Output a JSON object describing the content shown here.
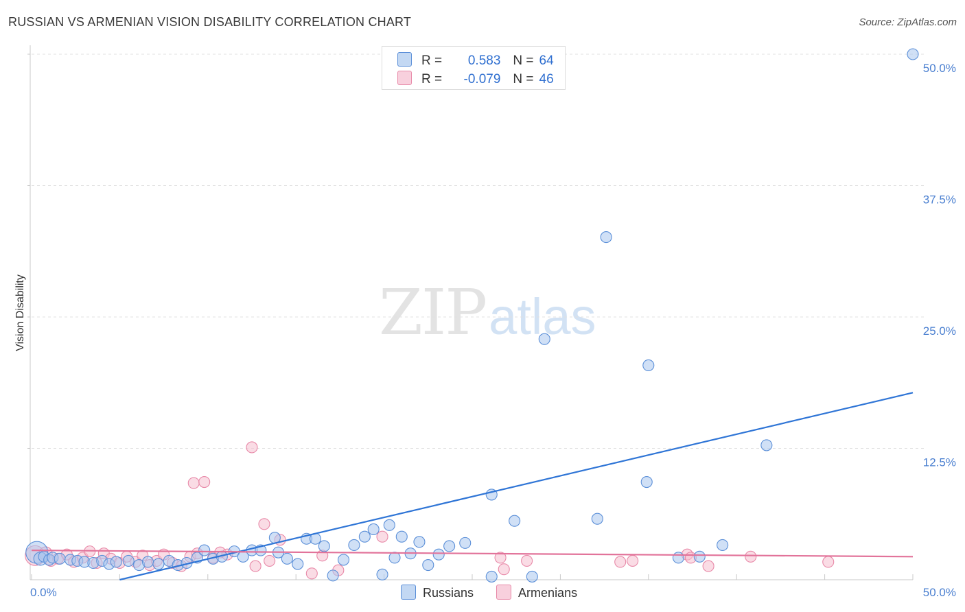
{
  "title": "RUSSIAN VS ARMENIAN VISION DISABILITY CORRELATION CHART",
  "source": "Source: ZipAtlas.com",
  "watermark": {
    "zip": "ZIP",
    "atlas": "atlas"
  },
  "colors": {
    "blue": "#5b8fd8",
    "blue_fill": "#a9c6ee",
    "blue_line": "#2f75d6",
    "pink": "#e889a8",
    "pink_fill": "#f5bfd0",
    "pink_line": "#e2739a",
    "grid": "#e0e0e0",
    "tick_text": "#4a7fd0"
  },
  "legend": {
    "rows": [
      {
        "r_label": "R =",
        "r_value": "0.583",
        "n_label": "N =",
        "n_value": "64"
      },
      {
        "r_label": "R =",
        "r_value": "-0.079",
        "n_label": "N =",
        "n_value": "46"
      }
    ]
  },
  "bottom_legend": [
    "Russians",
    "Armenians"
  ],
  "chart_data": {
    "type": "scatter",
    "title": "RUSSIAN VS ARMENIAN VISION DISABILITY CORRELATION CHART",
    "xlabel": "",
    "ylabel": "Vision Disability",
    "xlim": [
      0,
      50
    ],
    "ylim": [
      0,
      50
    ],
    "x_ticks": [
      "0.0%",
      "50.0%"
    ],
    "y_ticks": [
      "12.5%",
      "25.0%",
      "37.5%",
      "50.0%"
    ],
    "y_tick_values": [
      12.5,
      25.0,
      37.5,
      50.0
    ],
    "grid": "horizontal dashed",
    "series": [
      {
        "name": "Russians",
        "r": 0.583,
        "n": 64,
        "trendline": [
          [
            5.0,
            0.0
          ],
          [
            50.0,
            17.8
          ]
        ],
        "points": [
          [
            0.3,
            2.6,
            2.0
          ],
          [
            0.5,
            2.0,
            1.2
          ],
          [
            0.7,
            2.2,
            1.0
          ],
          [
            1.0,
            1.9,
            1.0
          ],
          [
            1.2,
            2.1,
            1.0
          ],
          [
            1.6,
            2.0,
            1.0
          ],
          [
            2.2,
            1.9,
            1.0
          ],
          [
            2.6,
            1.8,
            1.0
          ],
          [
            3.0,
            1.7,
            1.0
          ],
          [
            3.5,
            1.6,
            1.0
          ],
          [
            4.0,
            1.8,
            1.0
          ],
          [
            4.4,
            1.5,
            1.0
          ],
          [
            4.8,
            1.7,
            1.0
          ],
          [
            5.5,
            1.8,
            1.0
          ],
          [
            6.1,
            1.4,
            1.0
          ],
          [
            6.6,
            1.7,
            1.0
          ],
          [
            7.2,
            1.5,
            1.0
          ],
          [
            7.8,
            1.8,
            1.0
          ],
          [
            8.3,
            1.4,
            1.0
          ],
          [
            8.8,
            1.6,
            1.0
          ],
          [
            9.4,
            2.1,
            1.0
          ],
          [
            9.8,
            2.8,
            1.0
          ],
          [
            10.3,
            2.0,
            1.0
          ],
          [
            10.8,
            2.2,
            1.0
          ],
          [
            11.5,
            2.7,
            1.0
          ],
          [
            12.0,
            2.2,
            1.0
          ],
          [
            12.5,
            2.8,
            1.0
          ],
          [
            13.0,
            2.8,
            1.0
          ],
          [
            13.8,
            4.0,
            1.0
          ],
          [
            14.0,
            2.6,
            1.0
          ],
          [
            14.5,
            2.0,
            1.0
          ],
          [
            15.1,
            1.5,
            1.0
          ],
          [
            15.6,
            3.9,
            1.0
          ],
          [
            16.1,
            3.9,
            1.0
          ],
          [
            16.6,
            3.2,
            1.0
          ],
          [
            17.1,
            0.4,
            1.0
          ],
          [
            17.7,
            1.9,
            1.0
          ],
          [
            18.3,
            3.3,
            1.0
          ],
          [
            18.9,
            4.1,
            1.0
          ],
          [
            19.4,
            4.8,
            1.0
          ],
          [
            19.9,
            0.5,
            1.0
          ],
          [
            20.3,
            5.2,
            1.0
          ],
          [
            20.6,
            2.1,
            1.0
          ],
          [
            21.0,
            4.1,
            1.0
          ],
          [
            21.5,
            2.5,
            1.0
          ],
          [
            22.0,
            3.6,
            1.0
          ],
          [
            22.5,
            1.4,
            1.0
          ],
          [
            23.1,
            2.4,
            1.0
          ],
          [
            23.7,
            3.2,
            1.0
          ],
          [
            24.6,
            3.5,
            1.0
          ],
          [
            26.1,
            8.1,
            1.0
          ],
          [
            26.1,
            0.3,
            1.0
          ],
          [
            27.4,
            5.6,
            1.0
          ],
          [
            28.4,
            0.3,
            1.0
          ],
          [
            29.1,
            22.9,
            1.0
          ],
          [
            32.1,
            5.8,
            1.0
          ],
          [
            32.6,
            32.6,
            1.0
          ],
          [
            34.9,
            9.3,
            1.0
          ],
          [
            35.0,
            20.4,
            1.0
          ],
          [
            36.7,
            2.1,
            1.0
          ],
          [
            37.9,
            2.2,
            1.0
          ],
          [
            39.2,
            3.3,
            1.0
          ],
          [
            41.7,
            12.8,
            1.0
          ],
          [
            50.0,
            50.0,
            1.0
          ]
        ]
      },
      {
        "name": "Armenians",
        "r": -0.079,
        "n": 46,
        "trendline": [
          [
            0.0,
            2.8
          ],
          [
            50.0,
            2.2
          ]
        ],
        "points": [
          [
            0.2,
            2.3,
            1.8
          ],
          [
            0.8,
            2.5,
            1.2
          ],
          [
            1.1,
            1.8,
            1.0
          ],
          [
            1.5,
            2.0,
            1.0
          ],
          [
            2.0,
            2.4,
            1.0
          ],
          [
            2.4,
            1.7,
            1.0
          ],
          [
            2.9,
            2.1,
            1.0
          ],
          [
            3.3,
            2.7,
            1.0
          ],
          [
            3.7,
            1.6,
            1.0
          ],
          [
            4.1,
            2.5,
            1.0
          ],
          [
            4.5,
            2.0,
            1.0
          ],
          [
            5.0,
            1.6,
            1.0
          ],
          [
            5.4,
            2.2,
            1.0
          ],
          [
            5.9,
            1.7,
            1.0
          ],
          [
            6.3,
            2.3,
            1.0
          ],
          [
            6.7,
            1.4,
            1.0
          ],
          [
            7.1,
            1.8,
            1.0
          ],
          [
            7.5,
            2.4,
            1.0
          ],
          [
            8.0,
            1.6,
            1.0
          ],
          [
            8.5,
            1.3,
            1.0
          ],
          [
            9.0,
            2.2,
            1.0
          ],
          [
            9.2,
            9.2,
            1.0
          ],
          [
            9.4,
            2.5,
            1.0
          ],
          [
            9.8,
            9.3,
            1.0
          ],
          [
            10.3,
            2.1,
            1.0
          ],
          [
            10.7,
            2.6,
            1.0
          ],
          [
            11.1,
            2.4,
            1.0
          ],
          [
            12.5,
            12.6,
            1.0
          ],
          [
            12.7,
            1.3,
            1.0
          ],
          [
            13.2,
            5.3,
            1.0
          ],
          [
            13.5,
            1.8,
            1.0
          ],
          [
            14.1,
            3.8,
            1.0
          ],
          [
            15.9,
            0.6,
            1.0
          ],
          [
            16.5,
            2.3,
            1.0
          ],
          [
            17.4,
            0.9,
            1.0
          ],
          [
            19.9,
            4.1,
            1.0
          ],
          [
            26.6,
            2.1,
            1.0
          ],
          [
            26.8,
            1.0,
            1.0
          ],
          [
            28.1,
            1.8,
            1.0
          ],
          [
            33.4,
            1.7,
            1.0
          ],
          [
            34.1,
            1.8,
            1.0
          ],
          [
            37.2,
            2.4,
            1.0
          ],
          [
            37.4,
            2.1,
            1.0
          ],
          [
            38.4,
            1.3,
            1.0
          ],
          [
            40.8,
            2.2,
            1.0
          ],
          [
            45.2,
            1.7,
            1.0
          ]
        ]
      }
    ]
  }
}
